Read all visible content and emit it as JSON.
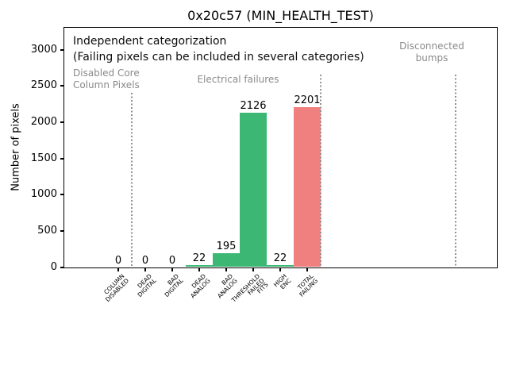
{
  "chart_data": {
    "type": "bar",
    "title": "0x20c57 (MIN_HEALTH_TEST)",
    "xlabel": "",
    "ylabel": "Number of pixels",
    "categories": [
      "COLUMN\nDISABLED",
      "DEAD\nDIGITAL",
      "BAD\nDIGITAL",
      "DEAD\nANALOG",
      "BAD\nANALOG",
      "THRESHOLD\nFAILED\nFITS",
      "HIGH\nENC",
      "TOTAL\nFAILING"
    ],
    "values": [
      0,
      0,
      0,
      22,
      195,
      2126,
      22,
      2201
    ],
    "value_labels": [
      "0",
      "0",
      "0",
      "22",
      "195",
      "2126",
      "22",
      "2201"
    ],
    "bar_colors": [
      "#3DB874",
      "#3DB874",
      "#3DB874",
      "#3DB874",
      "#3DB874",
      "#3DB874",
      "#3DB874",
      "#F08080"
    ],
    "ylim": [
      0,
      3300
    ],
    "yticks": [
      0,
      500,
      1000,
      1500,
      2000,
      2500,
      3000
    ],
    "grid": false,
    "legend": "none",
    "note_line1": "Independent categorization",
    "note_line2": "(Failing pixels can be included in several categories)",
    "section_labels": [
      {
        "name": "disabled-core",
        "text": "Disabled Core\nColumn Pixels"
      },
      {
        "name": "electrical-failures",
        "text": "Electrical failures"
      },
      {
        "name": "disconnected-bumps",
        "text": "Disconnected\nbumps"
      }
    ],
    "section_dividers": [
      {
        "x": 0.5,
        "ytop": 2400
      },
      {
        "x": 7.5,
        "ytop": 2650
      },
      {
        "x": 12.5,
        "ytop": 2650
      }
    ],
    "colors": {
      "green_bar": "#3DB874",
      "red_bar": "#F08080",
      "section_text": "#8A8A8A",
      "divider": "#909090",
      "background": "#FFFFFF"
    }
  }
}
